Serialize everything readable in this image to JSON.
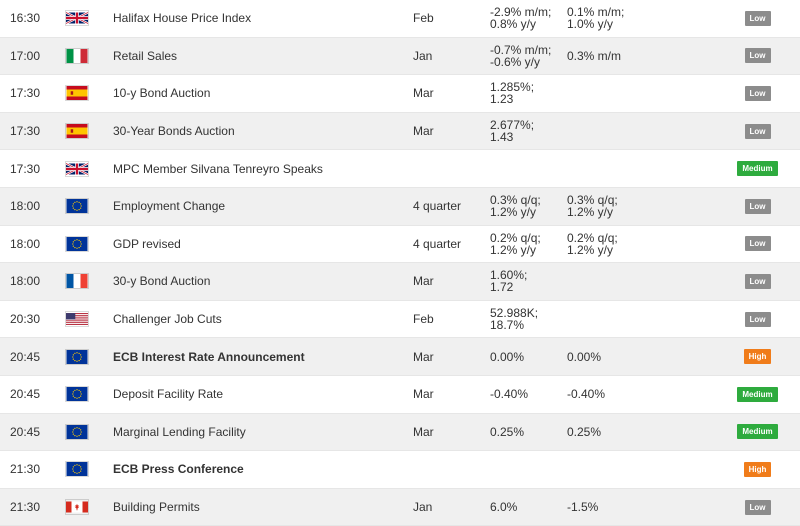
{
  "rows": [
    {
      "time": "16:30",
      "flag": "uk-flag-icon",
      "event": "Halifax House Price Index",
      "bold": false,
      "period": "Feb",
      "actual": "-2.9% m/m;\n0.8% y/y",
      "forecast": "0.1% m/m;\n1.0% y/y",
      "importance": "Low"
    },
    {
      "time": "17:00",
      "flag": "italy-flag-icon",
      "event": "Retail Sales",
      "bold": false,
      "period": "Jan",
      "actual": "-0.7% m/m;\n-0.6% y/y",
      "forecast": "0.3% m/m",
      "importance": "Low"
    },
    {
      "time": "17:30",
      "flag": "spain-flag-icon",
      "event": "10-y Bond Auction",
      "bold": false,
      "period": "Mar",
      "actual": "1.285%;\n1.23",
      "forecast": "",
      "importance": "Low"
    },
    {
      "time": "17:30",
      "flag": "spain-flag-icon",
      "event": "30-Year Bonds Auction",
      "bold": false,
      "period": "Mar",
      "actual": "2.677%;\n1.43",
      "forecast": "",
      "importance": "Low"
    },
    {
      "time": "17:30",
      "flag": "uk-flag-icon",
      "event": "MPC Member Silvana Tenreyro Speaks",
      "bold": false,
      "period": "",
      "actual": "",
      "forecast": "",
      "importance": "Medium"
    },
    {
      "time": "18:00",
      "flag": "eu-flag-icon",
      "event": "Employment Change",
      "bold": false,
      "period": "4 quarter",
      "actual": "0.3% q/q;\n1.2% y/y",
      "forecast": "0.3% q/q;\n1.2% y/y",
      "importance": "Low"
    },
    {
      "time": "18:00",
      "flag": "eu-flag-icon",
      "event": "GDP revised",
      "bold": false,
      "period": "4 quarter",
      "actual": "0.2% q/q;\n1.2% y/y",
      "forecast": "0.2% q/q;\n1.2% y/y",
      "importance": "Low"
    },
    {
      "time": "18:00",
      "flag": "france-flag-icon",
      "event": "30-y Bond Auction",
      "bold": false,
      "period": "Mar",
      "actual": "1.60%;\n1.72",
      "forecast": "",
      "importance": "Low"
    },
    {
      "time": "20:30",
      "flag": "usa-flag-icon",
      "event": "Challenger Job Cuts",
      "bold": false,
      "period": "Feb",
      "actual": "52.988K;\n18.7%",
      "forecast": "",
      "importance": "Low"
    },
    {
      "time": "20:45",
      "flag": "eu-flag-icon",
      "event": "ECB Interest Rate Announcement",
      "bold": true,
      "period": "Mar",
      "actual": "0.00%",
      "forecast": "0.00%",
      "importance": "High"
    },
    {
      "time": "20:45",
      "flag": "eu-flag-icon",
      "event": "Deposit Facility Rate",
      "bold": false,
      "period": "Mar",
      "actual": "-0.40%",
      "forecast": "-0.40%",
      "importance": "Medium"
    },
    {
      "time": "20:45",
      "flag": "eu-flag-icon",
      "event": "Marginal Lending Facility",
      "bold": false,
      "period": "Mar",
      "actual": "0.25%",
      "forecast": "0.25%",
      "importance": "Medium"
    },
    {
      "time": "21:30",
      "flag": "eu-flag-icon",
      "event": "ECB Press Conference",
      "bold": true,
      "period": "",
      "actual": "",
      "forecast": "",
      "importance": "High"
    },
    {
      "time": "21:30",
      "flag": "canada-flag-icon",
      "event": "Building Permits",
      "bold": false,
      "period": "Jan",
      "actual": "6.0%",
      "forecast": "-1.5%",
      "importance": "Low"
    }
  ]
}
